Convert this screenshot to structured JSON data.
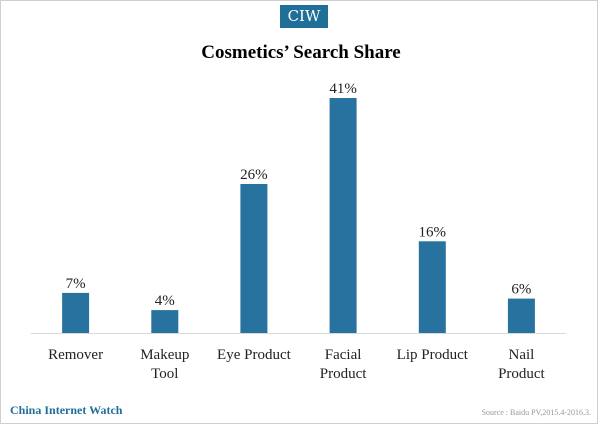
{
  "badge_text": "CIW",
  "brand_text": "China Internet Watch",
  "source_text": "Source : Baidu PV,2015.4-2016.3.",
  "colors": {
    "bar": "#2872a0",
    "badge": "#1f6f99",
    "axis": "#d9d9d9"
  },
  "chart_data": {
    "type": "bar",
    "title": "Cosmetics’ Search Share",
    "xlabel": "",
    "ylabel": "",
    "ylim": [
      0,
      41
    ],
    "categories": [
      [
        "Remover"
      ],
      [
        "Makeup",
        "Tool"
      ],
      [
        "Eye Product"
      ],
      [
        "Facial",
        "Product"
      ],
      [
        "Lip Product"
      ],
      [
        "Nail",
        "Product"
      ]
    ],
    "values": [
      7,
      4,
      26,
      41,
      16,
      6
    ],
    "value_labels": [
      "7%",
      "4%",
      "26%",
      "41%",
      "16%",
      "6%"
    ],
    "grid": false,
    "legend": "none"
  }
}
